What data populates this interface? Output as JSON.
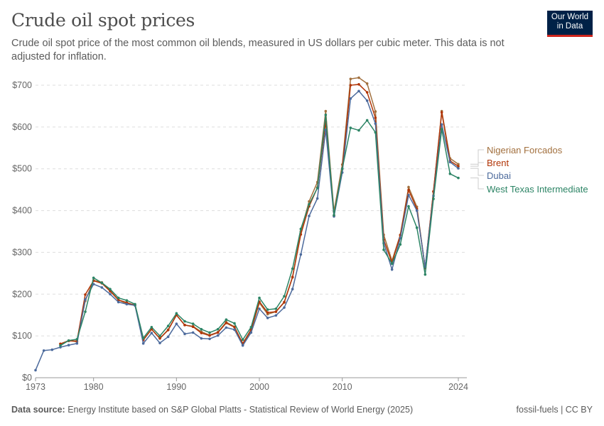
{
  "header": {
    "title": "Crude oil spot prices",
    "subtitle": "Crude oil spot price of the most common oil blends, measured in US dollars per cubic meter. This data is not adjusted for inflation.",
    "logo": "Our World in Data"
  },
  "footer": {
    "source_label": "Data source:",
    "source": "Energy Institute based on S&P Global Platts - Statistical Review of World Energy (2025)",
    "right": "fossil-fuels | CC BY"
  },
  "chart_data": {
    "type": "line",
    "title": "Crude oil spot prices",
    "xlabel": "",
    "ylabel": "",
    "xlim": [
      1973,
      2024
    ],
    "ylim": [
      0,
      700
    ],
    "grid": true,
    "legend": "right",
    "x_ticks": [
      "1973",
      "1980",
      "1990",
      "2000",
      "2010",
      "2024"
    ],
    "y_ticks": [
      "$0",
      "$100",
      "$200",
      "$300",
      "$400",
      "$500",
      "$600",
      "$700"
    ],
    "series": [
      {
        "name": "Nigerian Forcados",
        "color": "#a2703e",
        "start": 1976,
        "values": [
          81,
          89,
          86,
          184,
          233,
          228,
          209,
          186,
          177,
          175,
          91,
          116,
          94,
          115,
          150,
          126,
          123,
          110,
          102,
          109,
          133,
          122,
          79,
          113,
          179,
          152,
          158,
          180,
          240,
          350,
          422,
          468,
          638,
          398,
          510,
          715,
          718,
          704,
          637,
          342,
          280,
          342,
          456,
          409,
          262,
          445,
          638,
          525,
          511
        ]
      },
      {
        "name": "Brent",
        "color": "#b13507",
        "start": 1976,
        "values": [
          81,
          88,
          88,
          199,
          232,
          226,
          207,
          186,
          180,
          173,
          90,
          116,
          94,
          114,
          150,
          126,
          122,
          107,
          101,
          108,
          131,
          121,
          82,
          115,
          182,
          156,
          158,
          181,
          241,
          343,
          410,
          455,
          612,
          388,
          500,
          700,
          702,
          683,
          622,
          330,
          275,
          341,
          449,
          404,
          263,
          446,
          635,
          519,
          506
        ]
      },
      {
        "name": "Dubai",
        "color": "#4c6a9c",
        "start": 1973,
        "values": [
          18,
          65,
          67,
          73,
          78,
          82,
          187,
          224,
          216,
          200,
          181,
          176,
          173,
          82,
          107,
          83,
          98,
          129,
          105,
          108,
          94,
          93,
          101,
          120,
          115,
          77,
          108,
          165,
          143,
          149,
          168,
          212,
          295,
          387,
          429,
          593,
          386,
          491,
          668,
          686,
          663,
          608,
          322,
          259,
          334,
          437,
          400,
          265,
          435,
          606,
          516,
          501
        ]
      },
      {
        "name": "West Texas Intermediate",
        "color": "#2c8465",
        "start": 1976,
        "values": [
          77,
          89,
          92,
          158,
          239,
          227,
          212,
          191,
          185,
          176,
          95,
          121,
          100,
          124,
          154,
          135,
          129,
          116,
          108,
          116,
          139,
          130,
          91,
          121,
          191,
          163,
          165,
          195,
          261,
          356,
          415,
          454,
          629,
          389,
          500,
          598,
          592,
          616,
          587,
          306,
          273,
          319,
          410,
          359,
          247,
          428,
          595,
          488,
          478
        ]
      }
    ]
  }
}
